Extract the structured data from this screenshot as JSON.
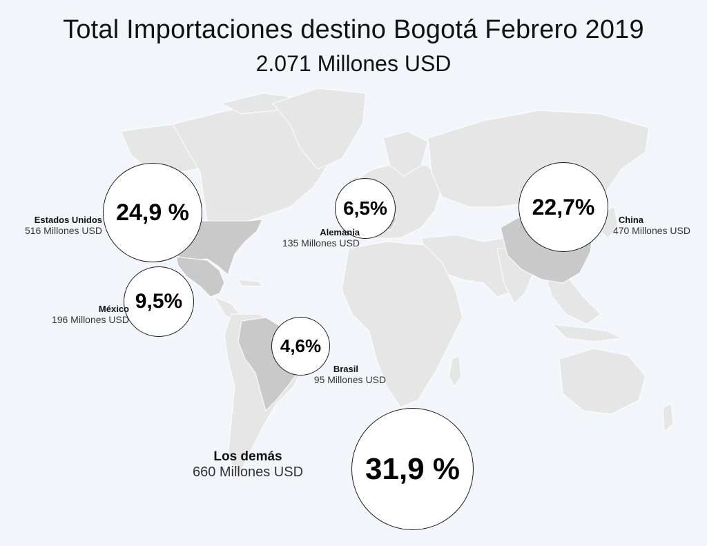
{
  "header": {
    "title": "Total Importaciones destino Bogotá Febrero 2019",
    "subtitle": "2.071 Millones USD"
  },
  "colors": {
    "background": "#f2f6fb",
    "land": "#e6e6e6",
    "highlight": "#c9c9c9",
    "border": "#ffffff",
    "bubble_fill": "#ffffff",
    "bubble_stroke": "#1a1a1a"
  },
  "countries": [
    {
      "id": "estados-unidos",
      "name": "Estados Unidos",
      "value": "516 Millones USD",
      "percent": "24,9 %"
    },
    {
      "id": "mexico",
      "name": "México",
      "value": "196 Millones USD",
      "percent": "9,5%"
    },
    {
      "id": "alemania",
      "name": "Alemania",
      "value": "135 Millones USD",
      "percent": "6,5%"
    },
    {
      "id": "china",
      "name": "China",
      "value": "470 Millones USD",
      "percent": "22,7%"
    },
    {
      "id": "brasil",
      "name": "Brasil",
      "value": "95 Millones USD",
      "percent": "4,6%"
    },
    {
      "id": "los-demas",
      "name": "Los demás",
      "value": "660 Millones USD",
      "percent": "31,9 %"
    }
  ]
}
